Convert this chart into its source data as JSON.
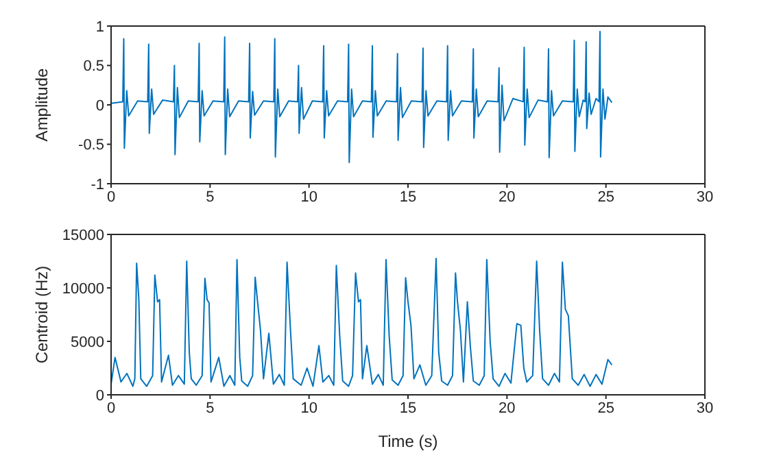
{
  "chart_data": [
    {
      "type": "line",
      "ylabel": "Amplitude",
      "xlim": [
        0,
        30
      ],
      "xticks": [
        0,
        5,
        10,
        15,
        20,
        25,
        30
      ],
      "ylim": [
        -1,
        1
      ],
      "yticks": [
        -1,
        -0.5,
        0,
        0.5,
        1
      ],
      "marker": "none",
      "series": [
        {
          "color": "#0072bd",
          "x": [
            0,
            0.59,
            0.64,
            0.67,
            0.79,
            0.89,
            1.34,
            1.85,
            1.9,
            1.93,
            2.05,
            2.15,
            2.6,
            3.15,
            3.2,
            3.23,
            3.35,
            3.45,
            3.9,
            4.4,
            4.45,
            4.48,
            4.6,
            4.7,
            5.15,
            5.69,
            5.74,
            5.77,
            5.89,
            5.99,
            6.44,
            6.95,
            7.0,
            7.03,
            7.15,
            7.25,
            7.7,
            8.22,
            8.27,
            8.3,
            8.42,
            8.52,
            8.97,
            9.42,
            9.47,
            9.5,
            9.62,
            9.72,
            10.17,
            10.69,
            10.74,
            10.77,
            10.89,
            10.99,
            11.44,
            11.95,
            12.0,
            12.03,
            12.15,
            12.25,
            12.7,
            13.15,
            13.2,
            13.23,
            13.35,
            13.45,
            13.9,
            14.42,
            14.47,
            14.5,
            14.62,
            14.72,
            15.17,
            15.71,
            15.76,
            15.79,
            15.91,
            16.01,
            16.46,
            16.95,
            17.0,
            17.03,
            17.15,
            17.25,
            17.7,
            18.25,
            18.3,
            18.33,
            18.45,
            18.55,
            19.0,
            19.55,
            19.6,
            19.63,
            19.75,
            19.85,
            20.3,
            20.82,
            20.87,
            20.9,
            21.02,
            21.12,
            21.57,
            22.05,
            22.1,
            22.13,
            22.25,
            22.35,
            22.8,
            23.35,
            23.4,
            23.43,
            23.55,
            23.65,
            23.85,
            23.95,
            24.0,
            24.03,
            24.15,
            24.25,
            24.5,
            24.65,
            24.7,
            24.73,
            24.85,
            24.95,
            25.1,
            25.3
          ],
          "values": [
            0.02,
            0.04,
            0.84,
            -0.55,
            0.18,
            -0.14,
            0.05,
            0.04,
            0.77,
            -0.36,
            0.2,
            -0.12,
            0.06,
            0.04,
            0.5,
            -0.63,
            0.22,
            -0.16,
            0.05,
            0.04,
            0.78,
            -0.47,
            0.18,
            -0.14,
            0.05,
            0.04,
            0.86,
            -0.63,
            0.2,
            -0.15,
            0.05,
            0.04,
            0.78,
            -0.42,
            0.17,
            -0.13,
            0.05,
            0.04,
            0.84,
            -0.66,
            0.2,
            -0.15,
            0.05,
            0.04,
            0.5,
            -0.36,
            0.22,
            -0.18,
            0.05,
            0.04,
            0.75,
            -0.42,
            0.18,
            -0.14,
            0.05,
            0.04,
            0.77,
            -0.73,
            0.2,
            -0.15,
            0.05,
            0.04,
            0.75,
            -0.41,
            0.18,
            -0.14,
            0.05,
            0.04,
            0.65,
            -0.45,
            0.22,
            -0.16,
            0.05,
            0.04,
            0.72,
            -0.54,
            0.18,
            -0.14,
            0.05,
            0.04,
            0.75,
            -0.45,
            0.18,
            -0.14,
            0.05,
            0.04,
            0.71,
            -0.42,
            0.2,
            -0.15,
            0.05,
            0.04,
            0.47,
            -0.6,
            0.25,
            -0.2,
            0.08,
            0.04,
            0.73,
            -0.51,
            0.2,
            -0.16,
            0.06,
            0.04,
            0.71,
            -0.67,
            0.18,
            -0.14,
            0.05,
            0.04,
            0.82,
            -0.59,
            0.2,
            -0.15,
            0.06,
            0.04,
            0.8,
            -0.3,
            0.15,
            -0.12,
            0.08,
            0.04,
            0.93,
            -0.66,
            0.2,
            -0.18,
            0.1,
            0.03
          ]
        }
      ]
    },
    {
      "type": "line",
      "xlabel": "Time (s)",
      "ylabel": "Centroid (Hz)",
      "xlim": [
        0,
        30
      ],
      "xticks": [
        0,
        5,
        10,
        15,
        20,
        25,
        30
      ],
      "ylim": [
        0,
        15000
      ],
      "yticks": [
        0,
        5000,
        10000,
        15000
      ],
      "marker": "none",
      "series": [
        {
          "color": "#0072bd",
          "x": [
            0,
            0.2,
            0.5,
            0.8,
            1.1,
            1.2,
            1.29,
            1.4,
            1.5,
            1.8,
            2.1,
            2.21,
            2.35,
            2.45,
            2.55,
            2.9,
            3.1,
            3.4,
            3.7,
            3.82,
            3.95,
            4.05,
            4.3,
            4.6,
            4.74,
            4.85,
            4.95,
            5.05,
            5.44,
            5.7,
            6.0,
            6.25,
            6.36,
            6.5,
            6.6,
            6.9,
            7.15,
            7.28,
            7.4,
            7.55,
            7.7,
            7.97,
            8.2,
            8.5,
            8.75,
            8.89,
            9.05,
            9.2,
            9.6,
            9.9,
            10.2,
            10.5,
            10.7,
            11.0,
            11.25,
            11.38,
            11.55,
            11.7,
            12.0,
            12.2,
            12.35,
            12.5,
            12.6,
            12.7,
            12.92,
            13.2,
            13.5,
            13.75,
            13.89,
            14.05,
            14.2,
            14.5,
            14.75,
            14.88,
            15.0,
            15.15,
            15.3,
            15.6,
            15.9,
            16.2,
            16.42,
            16.55,
            16.7,
            17.0,
            17.25,
            17.4,
            17.5,
            17.65,
            17.8,
            18.0,
            18.15,
            18.3,
            18.6,
            18.85,
            18.98,
            19.15,
            19.3,
            19.6,
            19.9,
            20.2,
            20.5,
            20.7,
            20.85,
            21.0,
            21.3,
            21.5,
            21.65,
            21.8,
            22.1,
            22.4,
            22.65,
            22.8,
            22.95,
            23.1,
            23.3,
            23.6,
            23.9,
            24.2,
            24.5,
            24.8,
            25.1,
            25.3
          ],
          "values": [
            1000,
            3500,
            1200,
            2000,
            800,
            1500,
            12300,
            9000,
            1500,
            800,
            1800,
            11200,
            8700,
            8900,
            1200,
            3700,
            900,
            1800,
            1000,
            12500,
            4000,
            1500,
            900,
            1800,
            10900,
            8900,
            8600,
            1200,
            3500,
            800,
            1800,
            900,
            12650,
            3500,
            1300,
            800,
            1800,
            11000,
            8700,
            6000,
            1500,
            5750,
            1000,
            1900,
            900,
            12400,
            6500,
            1500,
            900,
            2500,
            800,
            4600,
            1200,
            1800,
            900,
            12100,
            5500,
            1300,
            800,
            1800,
            11400,
            8700,
            8900,
            1500,
            4600,
            1000,
            1900,
            900,
            12650,
            5500,
            1400,
            900,
            1800,
            10950,
            8700,
            6500,
            1500,
            2800,
            900,
            1800,
            12750,
            4000,
            1300,
            900,
            1800,
            11400,
            8700,
            6000,
            1200,
            8700,
            4500,
            1300,
            900,
            1800,
            12650,
            5000,
            1500,
            800,
            2000,
            1100,
            6650,
            6500,
            2500,
            1200,
            1800,
            12500,
            6000,
            1500,
            900,
            2000,
            1200,
            12400,
            8000,
            7400,
            1500,
            900,
            1900,
            800,
            1900,
            1000,
            3300,
            2800
          ]
        }
      ]
    }
  ]
}
